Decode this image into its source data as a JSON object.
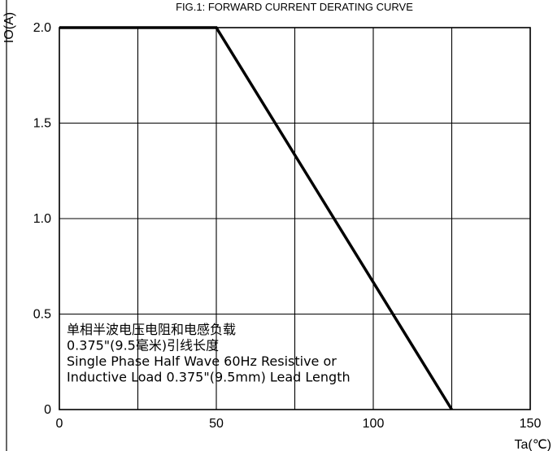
{
  "chart_data": {
    "type": "line",
    "title": "FIG.1: FORWARD CURRENT  DERATING CURVE",
    "xlabel": "Ta(℃)",
    "ylabel": "IO(A)",
    "xlim": [
      0,
      150
    ],
    "ylim": [
      0,
      2.0
    ],
    "x_ticks": [
      0,
      50,
      100,
      150
    ],
    "y_ticks": [
      0,
      0.5,
      1.0,
      1.5,
      2.0
    ],
    "x_tick_labels": [
      "0",
      "50",
      "100",
      "150"
    ],
    "y_tick_labels": [
      "0",
      "0.5",
      "1.0",
      "1.5",
      "2.0"
    ],
    "x_grid": [
      0,
      25,
      50,
      75,
      100,
      125,
      150
    ],
    "y_grid": [
      0,
      0.5,
      1.0,
      1.5,
      2.0
    ],
    "grid": true,
    "series": [
      {
        "x": [
          0,
          50,
          125
        ],
        "y": [
          2.0,
          2.0,
          0
        ],
        "color": "#000000"
      }
    ],
    "annotation_lines": [
      "单相半波电压电阻和电感负载",
      "0.375\"(9.5毫米)引线长度",
      "Single Phase Half Wave 60Hz Resistive or",
      "Inductive Load 0.375\"(9.5mm) Lead Length"
    ]
  }
}
